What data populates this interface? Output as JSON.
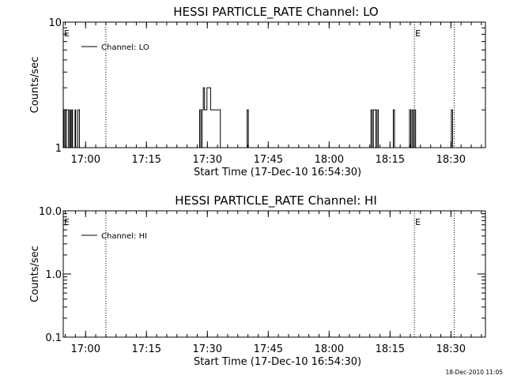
{
  "footer_timestamp": "18-Dec-2010 11:05",
  "chart_data": [
    {
      "type": "line",
      "title": "HESSI PARTICLE_RATE Channel: LO",
      "xlabel": "Start Time (17-Dec-10 16:54:30)",
      "ylabel": "Counts/sec",
      "y_scale": "log",
      "ylim": [
        1,
        10
      ],
      "y_ticks": [
        {
          "value": 1,
          "label": "1"
        },
        {
          "value": 10,
          "label": "10"
        }
      ],
      "x_unit": "minutes after 16:54:30",
      "xlim": [
        0,
        104
      ],
      "x_ticks": [
        {
          "value": 5.5,
          "label": "17:00"
        },
        {
          "value": 20.5,
          "label": "17:15"
        },
        {
          "value": 35.5,
          "label": "17:30"
        },
        {
          "value": 50.5,
          "label": "17:45"
        },
        {
          "value": 65.5,
          "label": "18:00"
        },
        {
          "value": 80.5,
          "label": "18:15"
        },
        {
          "value": 95.5,
          "label": "18:30"
        }
      ],
      "series": [
        {
          "name": "Channel: LO",
          "x": [
            0.2,
            0.5,
            0.8,
            1.0,
            1.3,
            1.6,
            1.8,
            2.1,
            2.3,
            2.6,
            2.9,
            3.1,
            3.4,
            3.6,
            4.0,
            33.0,
            33.6,
            33.9,
            34.2,
            34.5,
            34.8,
            35.1,
            35.4,
            35.7,
            36.0,
            36.3,
            36.6,
            36.9,
            37.3,
            38.5,
            38.7,
            38.9,
            45.0,
            45.3,
            45.6,
            75.5,
            75.8,
            76.1,
            76.4,
            76.7,
            77.0,
            77.3,
            77.6,
            77.9,
            81.0,
            81.3,
            81.6,
            85.0,
            85.3,
            85.6,
            85.9,
            86.2,
            86.5,
            86.8,
            95.3,
            95.6,
            95.9
          ],
          "values": [
            2,
            1,
            2,
            2,
            1,
            2,
            1,
            2,
            1,
            1,
            2,
            1,
            1,
            2,
            1,
            1,
            2,
            1,
            2,
            3,
            2,
            2,
            3,
            3,
            3,
            2,
            2,
            2,
            2,
            2,
            1,
            1,
            1,
            2,
            1,
            1,
            2,
            1,
            2,
            2,
            1,
            2,
            1,
            1,
            1,
            2,
            1,
            1,
            2,
            1,
            2,
            1,
            2,
            1,
            1,
            2,
            1
          ]
        }
      ],
      "markers": [
        {
          "x": 10.5,
          "label": ""
        },
        {
          "x": 86.5,
          "label": "E"
        },
        {
          "x": 96.3,
          "label": ""
        }
      ],
      "corner_marker": "E",
      "legend": {
        "position": "top-left",
        "entries": [
          "Channel: LO"
        ]
      }
    },
    {
      "type": "line",
      "title": "HESSI PARTICLE_RATE Channel: HI",
      "xlabel": "Start Time (17-Dec-10 16:54:30)",
      "ylabel": "Counts/sec",
      "y_scale": "log",
      "ylim": [
        0.1,
        10
      ],
      "y_ticks": [
        {
          "value": 0.1,
          "label": "0.1"
        },
        {
          "value": 1,
          "label": "1.0"
        },
        {
          "value": 10,
          "label": "10.0"
        }
      ],
      "x_unit": "minutes after 16:54:30",
      "xlim": [
        0,
        104
      ],
      "x_ticks": [
        {
          "value": 5.5,
          "label": "17:00"
        },
        {
          "value": 20.5,
          "label": "17:15"
        },
        {
          "value": 35.5,
          "label": "17:30"
        },
        {
          "value": 50.5,
          "label": "17:45"
        },
        {
          "value": 65.5,
          "label": "18:00"
        },
        {
          "value": 80.5,
          "label": "18:15"
        },
        {
          "value": 95.5,
          "label": "18:30"
        }
      ],
      "series": [
        {
          "name": "Channel: HI",
          "x": [],
          "values": []
        }
      ],
      "markers": [
        {
          "x": 10.5,
          "label": ""
        },
        {
          "x": 86.5,
          "label": "E"
        },
        {
          "x": 96.3,
          "label": ""
        }
      ],
      "corner_marker": "E",
      "legend": {
        "position": "top-left",
        "entries": [
          "Channel: HI"
        ]
      }
    }
  ]
}
